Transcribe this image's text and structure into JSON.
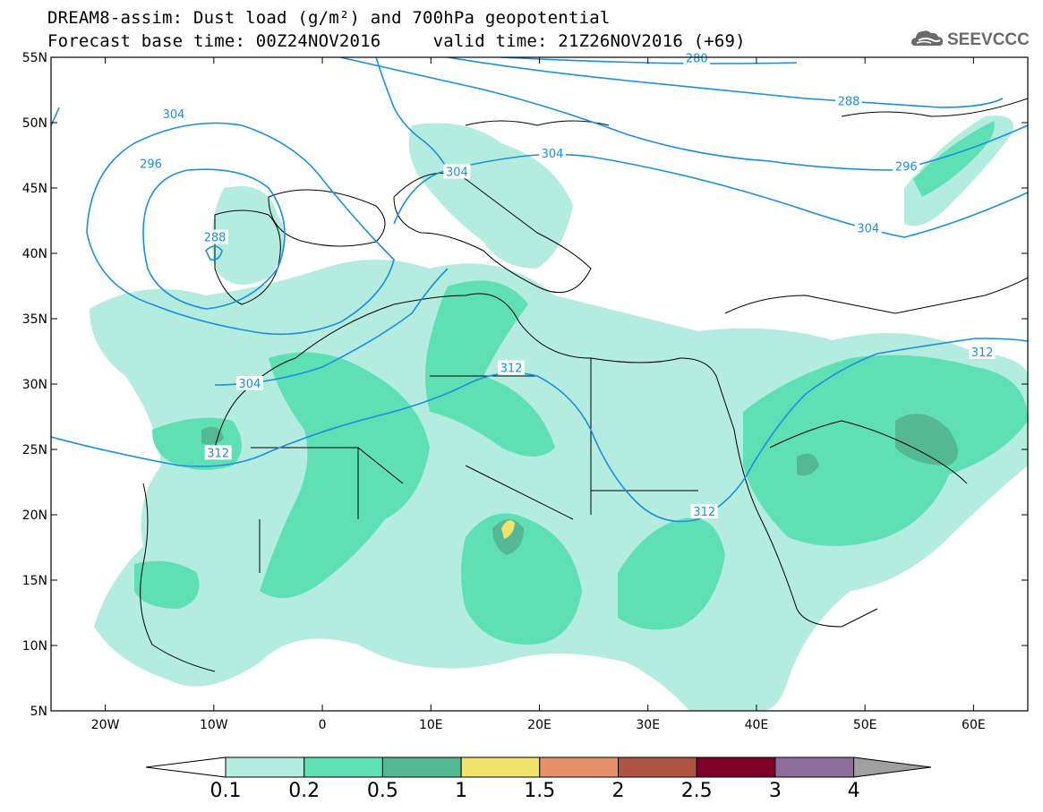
{
  "title": {
    "line1": "DREAM8-assim: Dust load (g/m²) and 700hPa geopotential",
    "line2": "Forecast base time: 00Z24NOV2016     valid time: 21Z26NOV2016 (+69)"
  },
  "logo": {
    "text": "SEEVCCC",
    "icon": "cloud-icon"
  },
  "map": {
    "lon_range": [
      -25,
      65
    ],
    "lat_range": [
      5,
      55
    ],
    "lat_ticks": [
      {
        "value": 55,
        "label": "55N"
      },
      {
        "value": 50,
        "label": "50N"
      },
      {
        "value": 45,
        "label": "45N"
      },
      {
        "value": 40,
        "label": "40N"
      },
      {
        "value": 35,
        "label": "35N"
      },
      {
        "value": 30,
        "label": "30N"
      },
      {
        "value": 25,
        "label": "25N"
      },
      {
        "value": 20,
        "label": "20N"
      },
      {
        "value": 15,
        "label": "15N"
      },
      {
        "value": 10,
        "label": "10N"
      },
      {
        "value": 5,
        "label": "5N"
      }
    ],
    "lon_ticks": [
      {
        "value": -20,
        "label": "20W"
      },
      {
        "value": -10,
        "label": "10W"
      },
      {
        "value": 0,
        "label": "0"
      },
      {
        "value": 10,
        "label": "10E"
      },
      {
        "value": 20,
        "label": "20E"
      },
      {
        "value": 30,
        "label": "30E"
      },
      {
        "value": 40,
        "label": "40E"
      },
      {
        "value": 50,
        "label": "50E"
      },
      {
        "value": 60,
        "label": "60E"
      }
    ],
    "geopotential_labels": [
      {
        "text": "304",
        "lon": -13.7,
        "lat": 50.6
      },
      {
        "text": "296",
        "lon": -15.8,
        "lat": 46.8
      },
      {
        "text": "288",
        "lon": -9.9,
        "lat": 41.2
      },
      {
        "text": "304",
        "lon": 12.4,
        "lat": 46.2
      },
      {
        "text": "304",
        "lon": 21.2,
        "lat": 47.6
      },
      {
        "text": "280",
        "lon": 34.5,
        "lat": 54.9
      },
      {
        "text": "288",
        "lon": 48.5,
        "lat": 51.6
      },
      {
        "text": "296",
        "lon": 53.8,
        "lat": 46.6
      },
      {
        "text": "304",
        "lon": 50.3,
        "lat": 41.9
      },
      {
        "text": "312",
        "lon": 60.8,
        "lat": 32.4
      },
      {
        "text": "304",
        "lon": -6.7,
        "lat": 30.0
      },
      {
        "text": "312",
        "lon": -9.6,
        "lat": 24.7
      },
      {
        "text": "312",
        "lon": 17.4,
        "lat": 31.2
      },
      {
        "text": "312",
        "lon": 35.2,
        "lat": 20.2
      }
    ]
  },
  "colorbar": {
    "levels": [
      "0.1",
      "0.2",
      "0.5",
      "1",
      "1.5",
      "2",
      "2.5",
      "3",
      "4"
    ],
    "colors": [
      "#b5ece0",
      "#5fe0b4",
      "#55b895",
      "#f0e46a",
      "#e8906a",
      "#b05442",
      "#7e0028",
      "#8e6c9c"
    ],
    "under_color": "#ffffff",
    "over_color": "#a0a0a0"
  },
  "colors": {
    "contour": "#1a8fe0",
    "dust_low": "#b5ece0",
    "dust_mid": "#5fe0b4",
    "dust_high": "#55b895",
    "dust_peak": "#f0e46a"
  }
}
